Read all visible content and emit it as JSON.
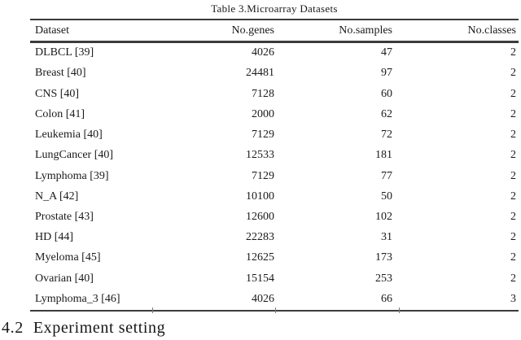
{
  "caption": "Table 3.Microarray Datasets",
  "table": {
    "columns": [
      "Dataset",
      "No.genes",
      "No.samples",
      "No.classes"
    ],
    "rows": [
      [
        "DLBCL [39]",
        "4026",
        "47",
        "2"
      ],
      [
        "Breast [40]",
        "24481",
        "97",
        "2"
      ],
      [
        "CNS [40]",
        "7128",
        "60",
        "2"
      ],
      [
        "Colon [41]",
        "2000",
        "62",
        "2"
      ],
      [
        "Leukemia [40]",
        "7129",
        "72",
        "2"
      ],
      [
        "LungCancer [40]",
        "12533",
        "181",
        "2"
      ],
      [
        "Lymphoma [39]",
        "7129",
        "77",
        "2"
      ],
      [
        "N_A [42]",
        "10100",
        "50",
        "2"
      ],
      [
        "Prostate [43]",
        "12600",
        "102",
        "2"
      ],
      [
        "HD [44]",
        "22283",
        "31",
        "2"
      ],
      [
        "Myeloma [45]",
        "12625",
        "173",
        "2"
      ],
      [
        "Ovarian [40]",
        "15154",
        "253",
        "2"
      ],
      [
        "Lymphoma_3 [46]",
        "4026",
        "66",
        "3"
      ]
    ]
  },
  "section": {
    "number": "4.2",
    "title": "Experiment setting"
  },
  "colors": {
    "background": "#ffffff",
    "text": "#1a1a1a",
    "rule": "#3b3b3b",
    "tick": "#7a7a7a"
  }
}
